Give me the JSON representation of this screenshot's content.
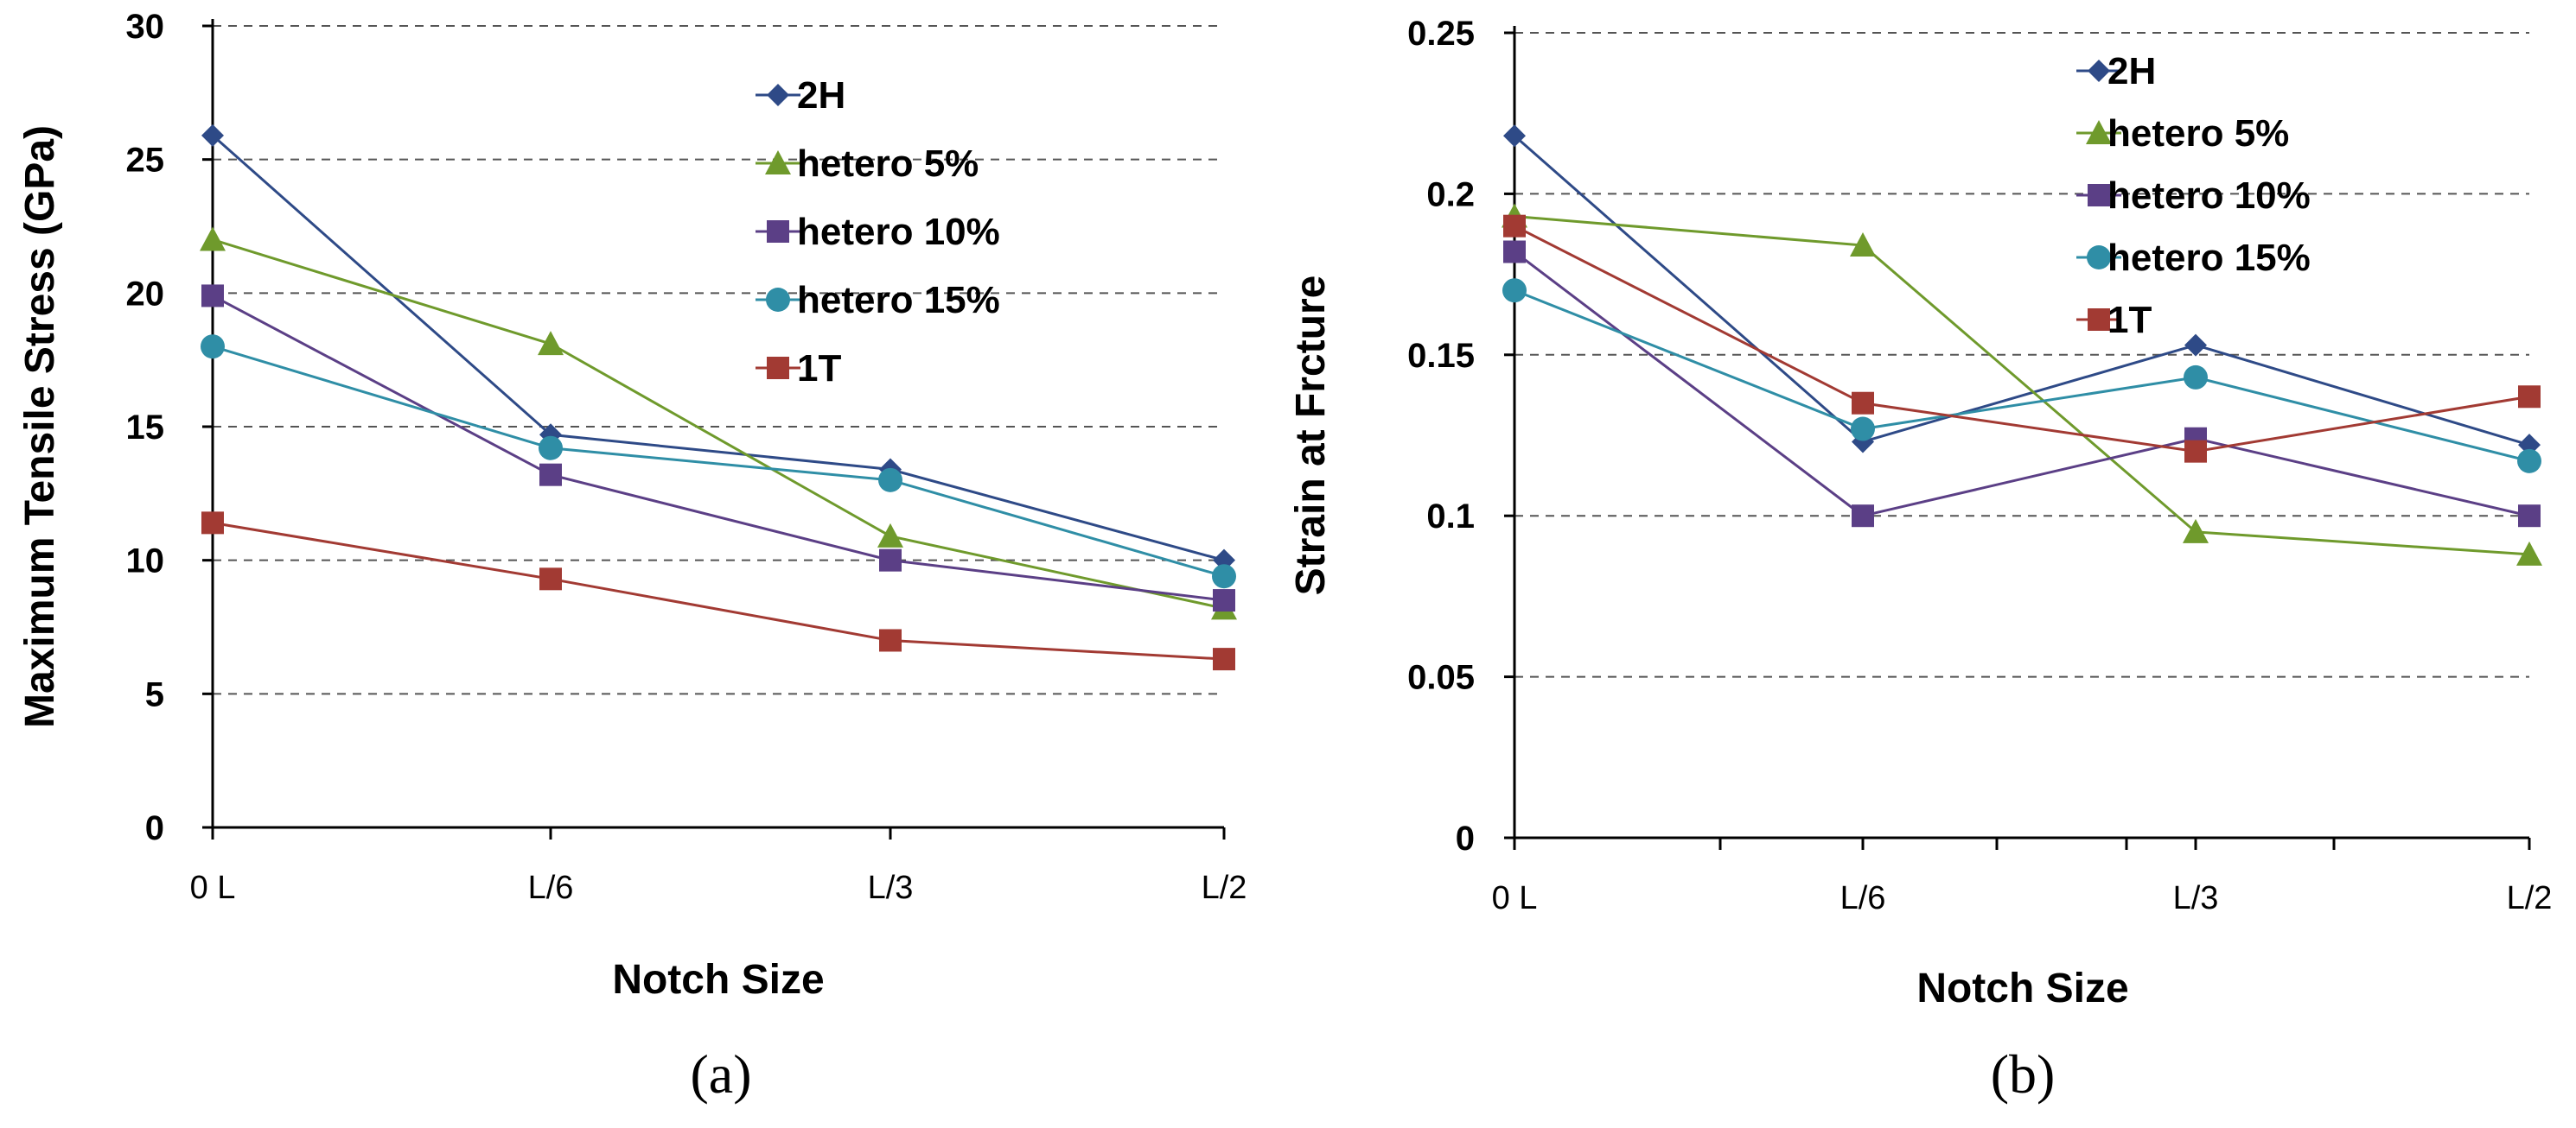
{
  "chart_data": [
    {
      "type": "line",
      "panel_label": "(a)",
      "xlabel": "Notch Size",
      "ylabel": "Maximum  Tensile Stress (GPa)",
      "categories": [
        "0 L",
        "L/6",
        "L/3",
        "L/2"
      ],
      "ylim": [
        0,
        30
      ],
      "yticks": [
        "0",
        "5",
        "10",
        "15",
        "20",
        "25",
        "30"
      ],
      "ytick_values": [
        0,
        5,
        10,
        15,
        20,
        25,
        30
      ],
      "grid": true,
      "legend_position": "top-right",
      "series": [
        {
          "name": "2H",
          "color": "#2e4a87",
          "marker": "diamond",
          "values": [
            25.9,
            14.7,
            13.4,
            10.0
          ]
        },
        {
          "name": "hetero 5%",
          "color": "#6f9a2c",
          "marker": "triangle",
          "values": [
            22.0,
            18.1,
            10.9,
            8.2
          ]
        },
        {
          "name": "hetero 10%",
          "color": "#5b3f86",
          "marker": "square",
          "values": [
            19.9,
            13.2,
            10.0,
            8.5
          ]
        },
        {
          "name": "hetero 15%",
          "color": "#2f8ea6",
          "marker": "circle",
          "values": [
            18.0,
            14.2,
            13.0,
            9.4
          ]
        },
        {
          "name": "1T",
          "color": "#a23a33",
          "marker": "square",
          "values": [
            11.4,
            9.3,
            7.0,
            6.3
          ]
        }
      ]
    },
    {
      "type": "line",
      "panel_label": "(b)",
      "xlabel": "Notch Size",
      "ylabel": "Strain at  Frcture",
      "categories": [
        "0 L",
        "L/6",
        "L/3",
        "L/2"
      ],
      "ylim": [
        0,
        0.25
      ],
      "yticks": [
        "0",
        "0.05",
        "0.1",
        "0.15",
        "0.2",
        "0.25"
      ],
      "ytick_values": [
        0,
        0.05,
        0.1,
        0.15,
        0.2,
        0.25
      ],
      "grid": true,
      "legend_position": "top-right",
      "series": [
        {
          "name": "2H",
          "color": "#2e4a87",
          "marker": "diamond",
          "values": [
            0.218,
            0.123,
            0.153,
            0.122
          ]
        },
        {
          "name": "hetero 5%",
          "color": "#6f9a2c",
          "marker": "triangle",
          "values": [
            0.193,
            0.184,
            0.095,
            0.088
          ]
        },
        {
          "name": "hetero 10%",
          "color": "#5b3f86",
          "marker": "square",
          "values": [
            0.182,
            0.1,
            0.124,
            0.1
          ]
        },
        {
          "name": "hetero 15%",
          "color": "#2f8ea6",
          "marker": "circle",
          "values": [
            0.17,
            0.127,
            0.143,
            0.117
          ]
        },
        {
          "name": "1T",
          "color": "#a23a33",
          "marker": "square",
          "values": [
            0.19,
            0.135,
            0.12,
            0.137
          ]
        }
      ]
    }
  ]
}
